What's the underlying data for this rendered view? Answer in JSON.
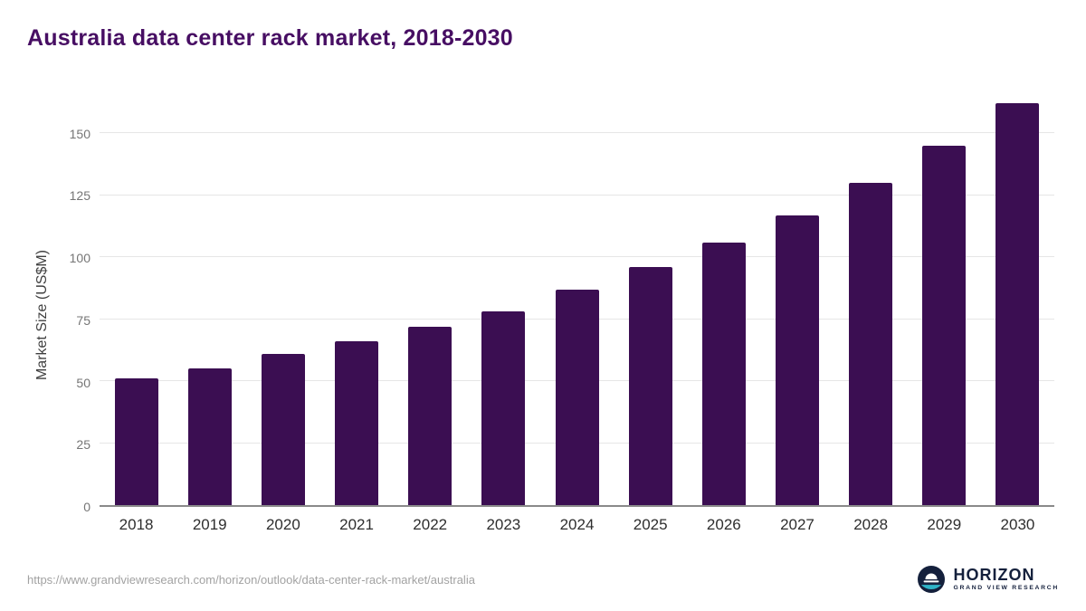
{
  "title": "Australia data center rack market, 2018-2030",
  "colors": {
    "bar": "#3b0e52",
    "title": "#470e63",
    "gridline": "#e6e6e6",
    "axis": "#8a8a8a",
    "logo_navy": "#14203c",
    "logo_teal": "#2fb4c7"
  },
  "chart_data": {
    "type": "bar",
    "title": "Australia data center rack market, 2018-2030",
    "categories": [
      "2018",
      "2019",
      "2020",
      "2021",
      "2022",
      "2023",
      "2024",
      "2025",
      "2026",
      "2027",
      "2028",
      "2029",
      "2030"
    ],
    "values": [
      51,
      55,
      61,
      66,
      72,
      78,
      87,
      96,
      106,
      117,
      130,
      145,
      162
    ],
    "xlabel": "",
    "ylabel": "Market Size (US$M)",
    "ylim": [
      0,
      168
    ],
    "yticks": [
      0,
      25,
      50,
      75,
      100,
      125,
      150
    ],
    "grid": true,
    "legend": false
  },
  "footer": {
    "source_url": "https://www.grandviewresearch.com/horizon/outlook/data-center-rack-market/australia",
    "logo": {
      "name": "HORIZON",
      "subtitle": "GRAND VIEW RESEARCH"
    }
  }
}
